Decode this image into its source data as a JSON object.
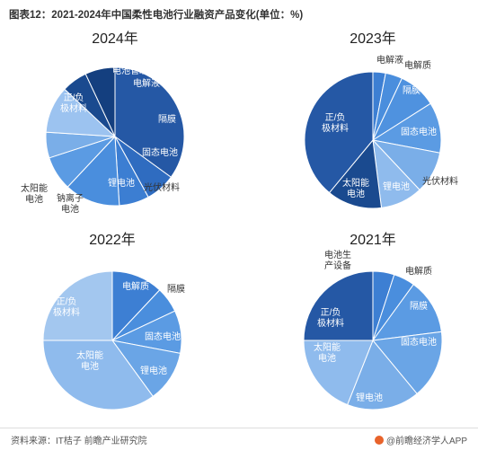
{
  "title": "图表12：2021-2024年中国柔性电池行业融资产品变化(单位：%)",
  "source": "资料来源：IT桔子 前瞻产业研究院",
  "brand": "@前瞻经济学人APP",
  "chart_data": [
    {
      "type": "pie",
      "title": "2024年",
      "slices": [
        {
          "label": "正/负极材料",
          "value": 35,
          "color": "#2558a5"
        },
        {
          "label": "电池管理",
          "value": 7,
          "color": "#2f6cc0"
        },
        {
          "label": "电解液",
          "value": 7,
          "color": "#3c7ed2"
        },
        {
          "label": "隔膜",
          "value": 13,
          "color": "#4a8edd"
        },
        {
          "label": "固态电池",
          "value": 8,
          "color": "#5b9be3"
        },
        {
          "label": "光伏材料",
          "value": 6,
          "color": "#7aaee8"
        },
        {
          "label": "锂电池",
          "value": 11,
          "color": "#9cc3f0"
        },
        {
          "label": "钠离子电池",
          "value": 6,
          "color": "#1a4a8f"
        },
        {
          "label": "太阳能电池",
          "value": 7,
          "color": "#143f7f"
        }
      ]
    },
    {
      "type": "pie",
      "title": "2023年",
      "slices": [
        {
          "label": "电解液",
          "value": 3,
          "color": "#3d7fd3"
        },
        {
          "label": "电解质",
          "value": 4,
          "color": "#4a8edd"
        },
        {
          "label": "隔膜",
          "value": 9,
          "color": "#4f92df"
        },
        {
          "label": "固态电池",
          "value": 12,
          "color": "#5b9be3"
        },
        {
          "label": "光伏材料",
          "value": 10,
          "color": "#7aaee8"
        },
        {
          "label": "锂电池",
          "value": 10,
          "color": "#8fbbed"
        },
        {
          "label": "太阳能电池",
          "value": 13,
          "color": "#1a4a8f"
        },
        {
          "label": "正/负极材料",
          "value": 39,
          "color": "#2558a5"
        }
      ]
    },
    {
      "type": "pie",
      "title": "2022年",
      "slices": [
        {
          "label": "电解质",
          "value": 12,
          "color": "#3d7fd3"
        },
        {
          "label": "隔膜",
          "value": 6,
          "color": "#4a8edd"
        },
        {
          "label": "固态电池",
          "value": 10,
          "color": "#5b9be3"
        },
        {
          "label": "锂电池",
          "value": 12,
          "color": "#6aa5e6"
        },
        {
          "label": "太阳能电池",
          "value": 35,
          "color": "#8fbbed"
        },
        {
          "label": "正/负极材料",
          "value": 25,
          "color": "#a3c7ef"
        }
      ]
    },
    {
      "type": "pie",
      "title": "2021年",
      "slices": [
        {
          "label": "电池生产设备",
          "value": 5,
          "color": "#3d7fd3"
        },
        {
          "label": "电解质",
          "value": 5,
          "color": "#4a8edd"
        },
        {
          "label": "隔膜",
          "value": 13,
          "color": "#5b9be3"
        },
        {
          "label": "固态电池",
          "value": 16,
          "color": "#6aa5e6"
        },
        {
          "label": "锂电池",
          "value": 17,
          "color": "#7aaee8"
        },
        {
          "label": "太阳能电池",
          "value": 19,
          "color": "#8fbbed"
        },
        {
          "label": "正/负极材料",
          "value": 25,
          "color": "#2558a5"
        }
      ]
    }
  ]
}
